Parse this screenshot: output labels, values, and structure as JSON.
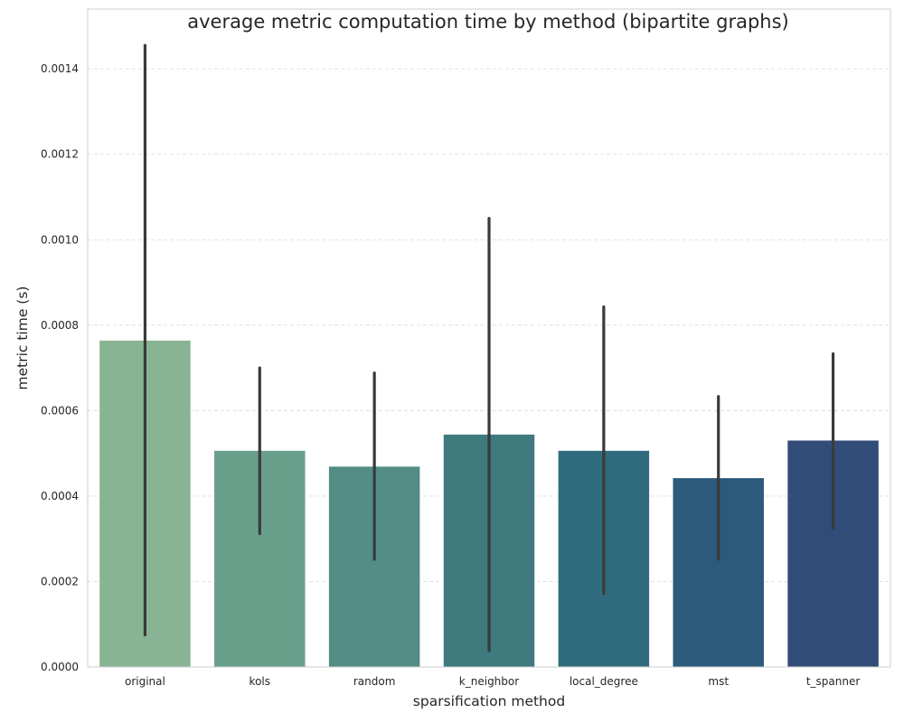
{
  "chart_data": {
    "type": "bar",
    "title": "average metric computation time by method (bipartite graphs)",
    "xlabel": "sparsification method",
    "ylabel": "metric time (s)",
    "categories": [
      "original",
      "kols",
      "random",
      "k_neighbor",
      "local_degree",
      "mst",
      "t_spanner"
    ],
    "values": [
      0.000765,
      0.000507,
      0.00047,
      0.000545,
      0.000507,
      0.000443,
      0.000531
    ],
    "error_low": [
      7.5e-05,
      0.000312,
      0.000252,
      3.8e-05,
      0.000172,
      0.000252,
      0.000325
    ],
    "error_high": [
      0.001455,
      0.0007,
      0.000688,
      0.00105,
      0.000843,
      0.000633,
      0.000733
    ],
    "colors": [
      "#88b494",
      "#68a08c",
      "#528d86",
      "#3e7a7e",
      "#306b7d",
      "#2c5a7c",
      "#324c78"
    ],
    "error_color": "#3a3a3a",
    "ylim": [
      0,
      0.00154
    ],
    "yticks": [
      "0.0000",
      "0.0002",
      "0.0004",
      "0.0006",
      "0.0008",
      "0.0010",
      "0.0012",
      "0.0014"
    ],
    "grid": "horizontal dashed"
  }
}
